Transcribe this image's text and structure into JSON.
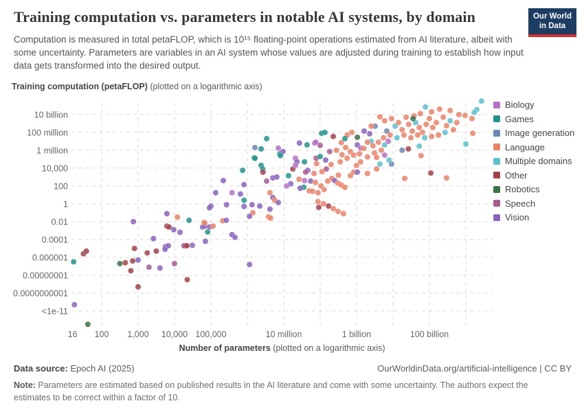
{
  "header": {
    "title": "Training computation vs. parameters in notable AI systems, by domain",
    "subtitle": "Computation is measured in total petaFLOP, which is 10¹⁵ floating-point operations estimated from AI literature, albeit with some uncertainty. Parameters are variables in an AI system whose values are adjusted during training to establish how input data gets transformed into the desired output.",
    "logo": {
      "line1": "Our World",
      "line2": "in Data"
    }
  },
  "axes": {
    "y_title_bold": "Training computation (petaFLOP)",
    "y_title_rest": " (plotted on a logarithmic axis)",
    "x_title_bold": "Number of parameters",
    "x_title_rest": " (plotted on a logarithmic axis)"
  },
  "footer": {
    "source_label": "Data source:",
    "source_value": " Epoch AI (2025)",
    "link": "OurWorldinData.org/artificial-intelligence | CC BY",
    "note_label": "Note:",
    "note_value": " Parameters are estimated based on published results in the AI literature and come with some uncertainty. The authors expect the estimates to be correct within a factor of 10."
  },
  "chart_data": {
    "type": "scatter",
    "title": "Training computation vs. parameters in notable AI systems, by domain",
    "xlabel": "Number of parameters (plotted on a logarithmic axis)",
    "ylabel": "Training computation petaFLOP (plotted on a logarithmic axis)",
    "xlim_log10": [
      1.1,
      12.6
    ],
    "ylim_log10": [
      -13.8,
      12.0
    ],
    "grid": "dashed",
    "legend_position": "right",
    "x_ticks": [
      {
        "label": "16",
        "log10": 1.2
      },
      {
        "label": "100",
        "log10": 2
      },
      {
        "label": "1,000",
        "log10": 3
      },
      {
        "label": "10,000",
        "log10": 4
      },
      {
        "label": "100,000",
        "log10": 5
      },
      {
        "label": "10 million",
        "log10": 7
      },
      {
        "label": "1 billion",
        "log10": 9
      },
      {
        "label": "100 billion",
        "log10": 11
      }
    ],
    "y_ticks": [
      {
        "label": "10 billion",
        "log10": 10
      },
      {
        "label": "100 million",
        "log10": 8
      },
      {
        "label": "1 million",
        "log10": 6
      },
      {
        "label": "10,000",
        "log10": 4
      },
      {
        "label": "100",
        "log10": 2
      },
      {
        "label": "1",
        "log10": 0
      },
      {
        "label": "0.01",
        "log10": -2
      },
      {
        "label": "0.0001",
        "log10": -4
      },
      {
        "label": "0.000001",
        "log10": -6
      },
      {
        "label": "0.00000001",
        "log10": -8
      },
      {
        "label": "0.0000000001",
        "log10": -10
      },
      {
        "label": "<1e-11",
        "log10": -12
      }
    ],
    "x_gridlines_log10": [
      2,
      3,
      4,
      5,
      6,
      7,
      8,
      9,
      10,
      11,
      12
    ],
    "series": [
      {
        "name": "Biology",
        "color": "#b672c6"
      },
      {
        "name": "Games",
        "color": "#22948b"
      },
      {
        "name": "Image generation",
        "color": "#6e87b5"
      },
      {
        "name": "Language",
        "color": "#ea8268"
      },
      {
        "name": "Multiple domains",
        "color": "#5cc0cc"
      },
      {
        "name": "Other",
        "color": "#a2434c"
      },
      {
        "name": "Robotics",
        "color": "#3d7247"
      },
      {
        "name": "Speech",
        "color": "#a85b8f"
      },
      {
        "name": "Vision",
        "color": "#8a63bd"
      }
    ],
    "points_format": "[log10_parameters, log10_petaFLOP, series_index]",
    "points": [
      [
        1.23,
        -6.5,
        1
      ],
      [
        1.25,
        -11.3,
        8
      ],
      [
        1.5,
        -5.6,
        5
      ],
      [
        1.58,
        -5.3,
        5
      ],
      [
        1.62,
        -13.5,
        6
      ],
      [
        2.5,
        -6.7,
        6
      ],
      [
        2.65,
        -6.6,
        5
      ],
      [
        2.85,
        -6.4,
        5
      ],
      [
        3.0,
        -6.3,
        8
      ],
      [
        2.8,
        -7.5,
        5
      ],
      [
        2.9,
        -5.0,
        5
      ],
      [
        3.3,
        -7.1,
        7
      ],
      [
        3.6,
        -7.2,
        8
      ],
      [
        3.25,
        -5.5,
        5
      ],
      [
        3.5,
        -5.3,
        5
      ],
      [
        3.75,
        -4.8,
        8
      ],
      [
        3.83,
        -4.7,
        8
      ],
      [
        3.74,
        -5.1,
        8
      ],
      [
        4.0,
        -6.7,
        7
      ],
      [
        4.35,
        -8.5,
        5
      ],
      [
        3.0,
        -9.3,
        5
      ],
      [
        4.3,
        -4.7,
        5
      ],
      [
        3.42,
        -3.9,
        8
      ],
      [
        2.87,
        -2.0,
        8
      ],
      [
        3.79,
        -1.1,
        8
      ],
      [
        4.08,
        -1.5,
        3
      ],
      [
        3.79,
        -2.5,
        5
      ],
      [
        3.85,
        -2.6,
        5
      ],
      [
        3.98,
        -2.9,
        8
      ],
      [
        4.15,
        -3.2,
        8
      ],
      [
        4.4,
        -1.85,
        1
      ],
      [
        4.81,
        -2.1,
        3
      ],
      [
        4.77,
        -2.6,
        8
      ],
      [
        5.0,
        -0.25,
        8
      ],
      [
        4.26,
        -4.7,
        7
      ],
      [
        4.49,
        -4.65,
        8
      ],
      [
        4.85,
        -4.2,
        8
      ],
      [
        5.13,
        1.25,
        8
      ],
      [
        4.83,
        -2.5,
        8
      ],
      [
        4.91,
        -3.15,
        1
      ],
      [
        4.96,
        -2.6,
        8
      ],
      [
        4.83,
        -2.15,
        3
      ],
      [
        5.06,
        -2.5,
        3
      ],
      [
        5.32,
        -1.9,
        3
      ],
      [
        5.42,
        -1.85,
        8
      ],
      [
        5.58,
        -3.45,
        8
      ],
      [
        5.66,
        -3.75,
        8
      ],
      [
        4.34,
        -4.7,
        5
      ],
      [
        6.06,
        -6.8,
        8
      ],
      [
        4.96,
        -0.45,
        8
      ],
      [
        5.91,
        -0.3,
        8
      ],
      [
        6.15,
        -1.0,
        3
      ],
      [
        6.06,
        -1.4,
        8
      ],
      [
        6.62,
        -0.6,
        8
      ],
      [
        7.96,
        -0.4,
        5
      ],
      [
        6.19,
        5.15,
        1
      ],
      [
        6.89,
        5.6,
        1
      ],
      [
        6.38,
        4.3,
        1
      ],
      [
        6.42,
        3.9,
        1
      ],
      [
        6.43,
        3.55,
        5
      ],
      [
        5.87,
        3.75,
        1
      ],
      [
        5.34,
        2.6,
        8
      ],
      [
        6.53,
        2.55,
        7
      ],
      [
        6.7,
        2.9,
        8
      ],
      [
        6.81,
        3.0,
        8
      ],
      [
        5.58,
        1.25,
        0
      ],
      [
        5.81,
        1.1,
        8
      ],
      [
        5.91,
        0.4,
        1
      ],
      [
        5.43,
        -0.1,
        8
      ],
      [
        6.13,
        -0.1,
        8
      ],
      [
        6.34,
        -0.25,
        8
      ],
      [
        6.62,
        1.25,
        3
      ],
      [
        6.7,
        0.7,
        8
      ],
      [
        6.75,
        0.4,
        3
      ],
      [
        6.85,
        0.15,
        8
      ],
      [
        6.58,
        -1.45,
        3
      ],
      [
        6.64,
        -1.6,
        3
      ],
      [
        7.19,
        2.25,
        8
      ],
      [
        7.08,
        2.0,
        0
      ],
      [
        7.32,
        5.1,
        0
      ],
      [
        7.36,
        4.7,
        8
      ],
      [
        7.57,
        4.7,
        1
      ],
      [
        7.25,
        3.9,
        5
      ],
      [
        7.66,
        3.75,
        8
      ],
      [
        7.83,
        3.4,
        3
      ],
      [
        7.42,
        2.75,
        3
      ],
      [
        7.57,
        2.6,
        0
      ],
      [
        7.74,
        2.55,
        8
      ],
      [
        7.87,
        2.4,
        3
      ],
      [
        7.55,
        1.85,
        1
      ],
      [
        7.45,
        1.75,
        8
      ],
      [
        7.7,
        1.45,
        3
      ],
      [
        7.79,
        1.4,
        3
      ],
      [
        7.94,
        1.25,
        3
      ],
      [
        8.02,
        2.0,
        3
      ],
      [
        8.11,
        1.6,
        3
      ],
      [
        8.21,
        2.55,
        3
      ],
      [
        8.32,
        2.85,
        3
      ],
      [
        8.4,
        2.6,
        8
      ],
      [
        8.49,
        2.3,
        3
      ],
      [
        8.58,
        2.1,
        3
      ],
      [
        8.68,
        1.85,
        3
      ],
      [
        7.94,
        0.25,
        3
      ],
      [
        8.09,
        0.0,
        3
      ],
      [
        8.23,
        -0.25,
        5
      ],
      [
        8.36,
        -0.55,
        3
      ],
      [
        8.49,
        -0.85,
        3
      ],
      [
        8.64,
        -1.1,
        3
      ],
      [
        8.83,
        3.15,
        3
      ],
      [
        8.92,
        3.55,
        3
      ],
      [
        6.53,
        7.3,
        1
      ],
      [
        6.21,
        6.3,
        2
      ],
      [
        6.38,
        6.15,
        1
      ],
      [
        6.85,
        6.25,
        0
      ],
      [
        6.98,
        5.85,
        8
      ],
      [
        6.21,
        5.1,
        1
      ],
      [
        6.91,
        5.4,
        1
      ],
      [
        7.13,
        3.15,
        1
      ],
      [
        7.43,
        6.8,
        8
      ],
      [
        7.64,
        6.6,
        1
      ],
      [
        7.85,
        6.8,
        0
      ],
      [
        7.32,
        4.3,
        0
      ],
      [
        5.91,
        2.15,
        8
      ],
      [
        7.6,
        3.55,
        7
      ],
      [
        8.17,
        3.9,
        7
      ],
      [
        7.89,
        5.1,
        7
      ],
      [
        8.26,
        5.85,
        7
      ],
      [
        8.0,
        6.55,
        7
      ],
      [
        7.88,
        6.9,
        0
      ],
      [
        9.51,
        8.7,
        2
      ],
      [
        9.83,
        8.15,
        2
      ],
      [
        9.02,
        7.45,
        6
      ],
      [
        8.04,
        7.9,
        1
      ],
      [
        8.13,
        8.0,
        1
      ],
      [
        8.36,
        7.55,
        5
      ],
      [
        8.58,
        6.85,
        3
      ],
      [
        8.74,
        7.7,
        3
      ],
      [
        8.87,
        8.0,
        3
      ],
      [
        9.21,
        8.15,
        8
      ],
      [
        9.36,
        7.85,
        8
      ],
      [
        9.02,
        6.6,
        8
      ],
      [
        9.11,
        6.25,
        0
      ],
      [
        9.4,
        7.0,
        4
      ],
      [
        8.83,
        5.85,
        3
      ],
      [
        8.92,
        5.45,
        3
      ],
      [
        8.74,
        5.1,
        3
      ],
      [
        8.55,
        4.7,
        3
      ],
      [
        9.11,
        4.7,
        3
      ],
      [
        9.3,
        5.25,
        3
      ],
      [
        9.49,
        5.7,
        3
      ],
      [
        9.68,
        6.0,
        3
      ],
      [
        9.77,
        6.6,
        4
      ],
      [
        9.96,
        4.45,
        2
      ],
      [
        9.55,
        3.9,
        3
      ],
      [
        9.02,
        3.55,
        8
      ],
      [
        9.3,
        3.4,
        3
      ],
      [
        9.77,
        5.45,
        0
      ],
      [
        9.87,
        7.0,
        0
      ],
      [
        10.72,
        6.45,
        4
      ],
      [
        9.89,
        4.9,
        4
      ],
      [
        9.64,
        4.45,
        4
      ],
      [
        9.3,
        6.9,
        3
      ],
      [
        9.45,
        6.5,
        3
      ],
      [
        9.6,
        6.9,
        3
      ],
      [
        9.2,
        6.2,
        3
      ],
      [
        9.55,
        5.2,
        3
      ],
      [
        9.08,
        5.6,
        3
      ],
      [
        8.7,
        6.3,
        3
      ],
      [
        8.45,
        6.0,
        3
      ],
      [
        8.6,
        5.5,
        3
      ],
      [
        9.0,
        4.3,
        3
      ],
      [
        8.3,
        4.4,
        3
      ],
      [
        8.15,
        4.9,
        8
      ],
      [
        8.0,
        5.3,
        1
      ],
      [
        7.9,
        4.5,
        3
      ],
      [
        8.05,
        3.6,
        3
      ],
      [
        8.5,
        3.2,
        3
      ],
      [
        8.68,
        7.3,
        1
      ],
      [
        10.25,
        6.0,
        2
      ],
      [
        12.43,
        11.5,
        4
      ],
      [
        12.3,
        10.55,
        4
      ],
      [
        12.23,
        10.25,
        4
      ],
      [
        11.98,
        9.9,
        3
      ],
      [
        12.17,
        9.55,
        3
      ],
      [
        10.89,
        10.85,
        4
      ],
      [
        11.06,
        10.3,
        3
      ],
      [
        11.28,
        10.6,
        3
      ],
      [
        10.75,
        10.1,
        3
      ],
      [
        11.57,
        10.45,
        3
      ],
      [
        11.81,
        10.0,
        3
      ],
      [
        10.58,
        9.85,
        3
      ],
      [
        10.36,
        9.7,
        3
      ],
      [
        9.64,
        9.75,
        3
      ],
      [
        9.4,
        8.7,
        3
      ],
      [
        9.77,
        9.3,
        3
      ],
      [
        9.96,
        9.55,
        3
      ],
      [
        10.06,
        8.7,
        4
      ],
      [
        10.15,
        9.1,
        3
      ],
      [
        10.25,
        8.3,
        3
      ],
      [
        10.43,
        8.9,
        3
      ],
      [
        10.53,
        8.15,
        3
      ],
      [
        10.62,
        9.1,
        4
      ],
      [
        10.72,
        8.55,
        3
      ],
      [
        10.81,
        8.0,
        3
      ],
      [
        10.91,
        8.9,
        3
      ],
      [
        11.0,
        9.55,
        3
      ],
      [
        11.09,
        8.55,
        3
      ],
      [
        11.19,
        9.1,
        3
      ],
      [
        11.38,
        9.7,
        3
      ],
      [
        11.47,
        8.75,
        3
      ],
      [
        11.57,
        9.3,
        4
      ],
      [
        11.66,
        8.3,
        3
      ],
      [
        11.75,
        9.1,
        3
      ],
      [
        11.43,
        8.0,
        4
      ],
      [
        11.25,
        7.7,
        3
      ],
      [
        11.06,
        7.55,
        3
      ],
      [
        10.87,
        7.4,
        4
      ],
      [
        10.68,
        7.7,
        3
      ],
      [
        10.49,
        7.4,
        3
      ],
      [
        10.3,
        7.7,
        3
      ],
      [
        10.11,
        7.4,
        4
      ],
      [
        9.92,
        7.7,
        3
      ],
      [
        9.74,
        7.4,
        3
      ],
      [
        10.55,
        9.55,
        6
      ],
      [
        10.42,
        6.15,
        5
      ],
      [
        10.77,
        5.4,
        3
      ],
      [
        12.0,
        6.7,
        4
      ],
      [
        12.19,
        7.9,
        3
      ],
      [
        11.04,
        3.45,
        5
      ],
      [
        11.47,
        2.9,
        3
      ],
      [
        10.32,
        2.85,
        3
      ]
    ]
  }
}
